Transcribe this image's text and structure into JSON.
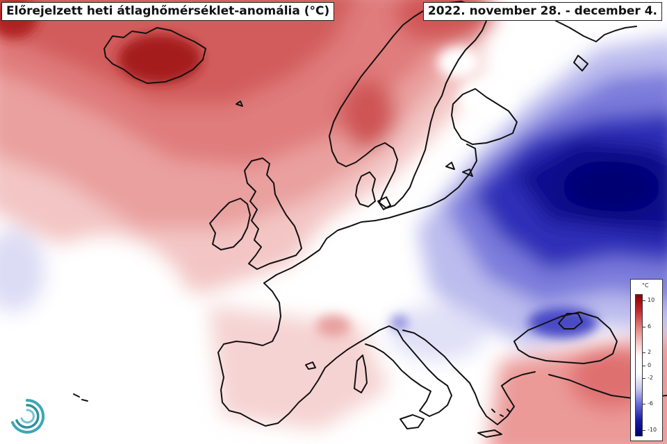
{
  "title": "Előrejelzett heti átlaghőmérséklet-anomália (°C)",
  "date_range": "2022. november 28. - december 4.",
  "legend": {
    "unit": "°C",
    "ticks": [
      {
        "value": 10,
        "label": "10"
      },
      {
        "value": 6,
        "label": "6"
      },
      {
        "value": 2,
        "label": "2"
      },
      {
        "value": 0,
        "label": "0"
      },
      {
        "value": -2,
        "label": "-2"
      },
      {
        "value": -6,
        "label": "-6"
      },
      {
        "value": -10,
        "label": "-10"
      }
    ],
    "min": -11,
    "max": 11,
    "colors": {
      "warm_max": "#8b0000",
      "warm_high": "#c1272d",
      "warm_mid": "#e07a78",
      "warm_low": "#f4c1c0",
      "neutral": "#ffffff",
      "cold_low": "#c8c8f0",
      "cold_mid": "#6868d8",
      "cold_high": "#1a1aa8",
      "cold_max": "#000070"
    }
  },
  "colors": {
    "land_outline": "#111111",
    "background_neutral": "#ffffff"
  },
  "logo": {
    "name": "met-service-logo"
  }
}
